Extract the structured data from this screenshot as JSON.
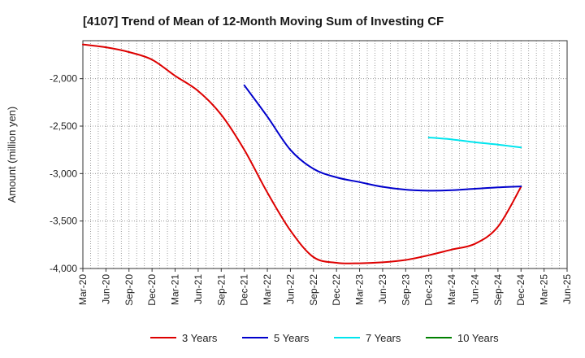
{
  "chart_data": {
    "type": "line",
    "title": "[4107]  Trend of Mean of 12-Month Moving Sum of Investing CF",
    "xlabel": "",
    "ylabel": "Amount (million yen)",
    "ylim": [
      -4000,
      -1600
    ],
    "yticks": [
      -4000,
      -3500,
      -3000,
      -2500,
      -2000
    ],
    "ytick_labels": [
      "-4,000",
      "-3,500",
      "-3,000",
      "-2,500",
      "-2,000"
    ],
    "x_tick_labels": [
      "Mar-20",
      "Jun-20",
      "Sep-20",
      "Dec-20",
      "Mar-21",
      "Jun-21",
      "Sep-21",
      "Dec-21",
      "Mar-22",
      "Jun-22",
      "Sep-22",
      "Dec-22",
      "Mar-23",
      "Jun-23",
      "Sep-23",
      "Dec-23",
      "Mar-24",
      "Jun-24",
      "Sep-24",
      "Dec-24",
      "Mar-25",
      "Jun-25"
    ],
    "grid": true,
    "legend_position": "bottom",
    "series": [
      {
        "name": "3 Years",
        "color": "#dd0000",
        "points": [
          [
            "Mar-20",
            -1640
          ],
          [
            "Jun-20",
            -1670
          ],
          [
            "Sep-20",
            -1720
          ],
          [
            "Dec-20",
            -1800
          ],
          [
            "Mar-21",
            -1970
          ],
          [
            "Jun-21",
            -2130
          ],
          [
            "Sep-21",
            -2380
          ],
          [
            "Dec-21",
            -2750
          ],
          [
            "Mar-22",
            -3200
          ],
          [
            "Jun-22",
            -3600
          ],
          [
            "Sep-22",
            -3880
          ],
          [
            "Dec-22",
            -3940
          ],
          [
            "Mar-23",
            -3945
          ],
          [
            "Jun-23",
            -3935
          ],
          [
            "Sep-23",
            -3910
          ],
          [
            "Dec-23",
            -3860
          ],
          [
            "Mar-24",
            -3800
          ],
          [
            "Jun-24",
            -3740
          ],
          [
            "Sep-24",
            -3560
          ],
          [
            "Dec-24",
            -3140
          ]
        ]
      },
      {
        "name": "5 Years",
        "color": "#0000cc",
        "points": [
          [
            "Dec-21",
            -2070
          ],
          [
            "Mar-22",
            -2400
          ],
          [
            "Jun-22",
            -2750
          ],
          [
            "Sep-22",
            -2950
          ],
          [
            "Dec-22",
            -3040
          ],
          [
            "Mar-23",
            -3090
          ],
          [
            "Jun-23",
            -3140
          ],
          [
            "Sep-23",
            -3170
          ],
          [
            "Dec-23",
            -3180
          ],
          [
            "Mar-24",
            -3175
          ],
          [
            "Jun-24",
            -3160
          ],
          [
            "Sep-24",
            -3145
          ],
          [
            "Dec-24",
            -3135
          ]
        ]
      },
      {
        "name": "7 Years",
        "color": "#00e5ee",
        "points": [
          [
            "Dec-23",
            -2620
          ],
          [
            "Mar-24",
            -2640
          ],
          [
            "Jun-24",
            -2670
          ],
          [
            "Sep-24",
            -2695
          ],
          [
            "Dec-24",
            -2725
          ]
        ]
      },
      {
        "name": "10 Years",
        "color": "#008000",
        "points": []
      }
    ]
  }
}
